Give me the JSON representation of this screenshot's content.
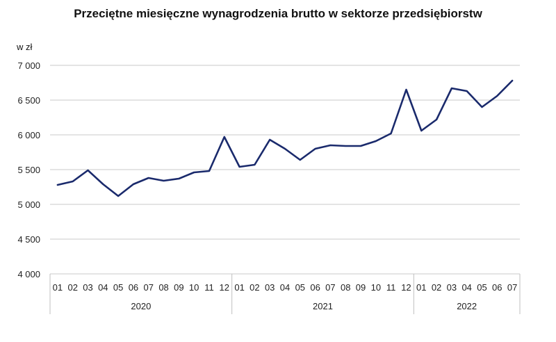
{
  "chart_data": {
    "type": "line",
    "title": "Przeciętne miesięczne wynagrodzenia brutto w sektorze przedsiębiorstw",
    "ylabel": "w zł",
    "ylim": [
      4000,
      7000
    ],
    "y_ticks": [
      "4 000",
      "4 500",
      "5 000",
      "5 500",
      "6 000",
      "6 500",
      "7 000"
    ],
    "y_tick_values": [
      4000,
      4500,
      5000,
      5500,
      6000,
      6500,
      7000
    ],
    "grid": true,
    "colors": {
      "line": "#1a2a6c",
      "grid": "#c8c8c8",
      "axis": "#bfbfbf"
    },
    "years": [
      {
        "label": "2020",
        "months": [
          "01",
          "02",
          "03",
          "04",
          "05",
          "06",
          "07",
          "08",
          "09",
          "10",
          "11",
          "12"
        ]
      },
      {
        "label": "2021",
        "months": [
          "01",
          "02",
          "03",
          "04",
          "05",
          "06",
          "07",
          "08",
          "09",
          "10",
          "11",
          "12"
        ]
      },
      {
        "label": "2022",
        "months": [
          "01",
          "02",
          "03",
          "04",
          "05",
          "06",
          "07"
        ]
      }
    ],
    "series": [
      {
        "values": [
          5280,
          5330,
          5490,
          5290,
          5120,
          5290,
          5380,
          5340,
          5370,
          5460,
          5480,
          5970,
          5540,
          5570,
          5930,
          5800,
          5640,
          5800,
          5850,
          5840,
          5840,
          5910,
          6020,
          6650,
          6060,
          6220,
          6670,
          6630,
          6400,
          6560,
          6780
        ]
      }
    ]
  }
}
